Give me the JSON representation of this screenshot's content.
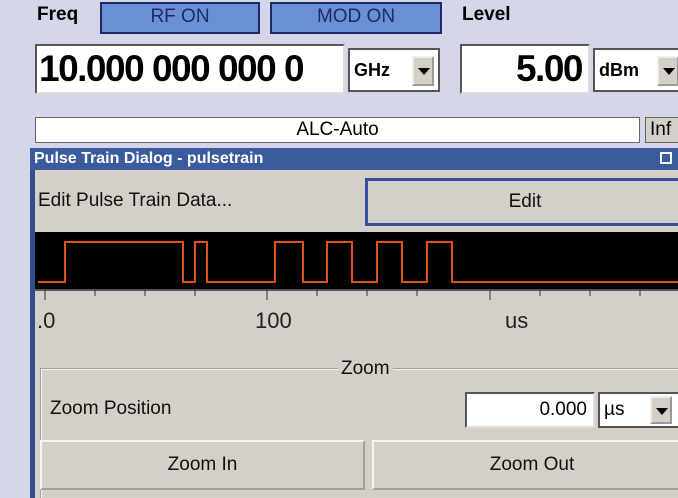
{
  "header": {
    "freq_label": "Freq",
    "rf_button": "RF ON",
    "mod_button": "MOD ON",
    "level_label": "Level",
    "freq_value": "10.000 000 000 0",
    "freq_unit": "GHz",
    "level_value": "5.00",
    "level_unit": "dBm",
    "alc": "ALC-Auto",
    "info": "Inf"
  },
  "dialog": {
    "title": "Pulse Train Dialog - pulsetrain",
    "edit_label": "Edit Pulse Train Data...",
    "edit_button": "Edit",
    "axis": {
      "labels": [
        ".0",
        "100",
        "us"
      ]
    },
    "zoom": {
      "group": "Zoom",
      "position_label": "Zoom Position",
      "position_value": "0.000",
      "position_unit": "µs",
      "zoom_in": "Zoom In",
      "zoom_out": "Zoom Out"
    }
  }
}
